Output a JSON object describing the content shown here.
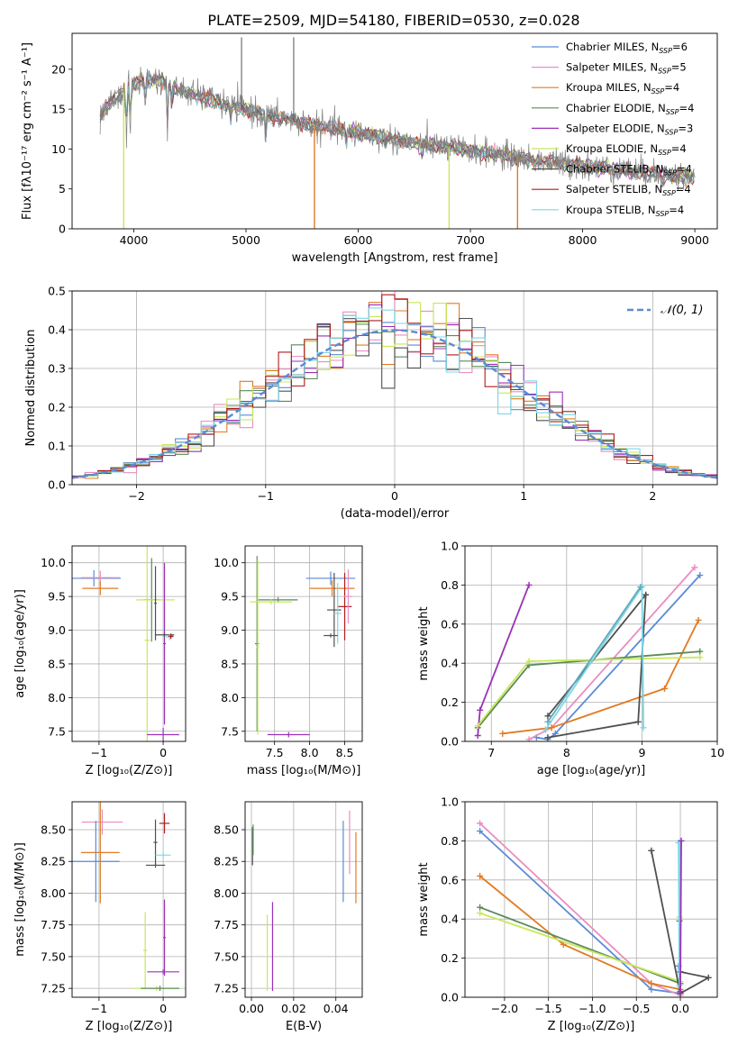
{
  "figure": {
    "title": "PLATE=2509, MJD=54180, FIBERID=0530, z=0.028"
  },
  "model_colors": [
    "#4c72b0",
    "#dd8452",
    "#55a868",
    "#c44e52",
    "#8172b3",
    "#937860",
    "#da8bc3",
    "#8c8c8c",
    "#ccb974",
    "#64b5cd"
  ],
  "chart_data": [
    {
      "id": "spectrum",
      "type": "line",
      "xlabel": "wavelength [Angstrom, rest frame]",
      "ylabel": "Flux [fλ10⁻¹⁷ erg cm⁻² s⁻¹ A⁻¹]",
      "xlim": [
        3450,
        9200
      ],
      "ylim": [
        0,
        24.5
      ],
      "xticks": [
        4000,
        5000,
        6000,
        7000,
        8000,
        9000
      ],
      "yticks": [
        0,
        5,
        10,
        15,
        20
      ],
      "legend": {
        "position": "right",
        "entries": [
          {
            "label": "Chabrier MILES, N",
            "sub": "SSP",
            "suffix": "=6",
            "color": "#5b8bd6"
          },
          {
            "label": "Salpeter MILES, N",
            "sub": "SSP",
            "suffix": "=5",
            "color": "#e98ec0"
          },
          {
            "label": "Kroupa MILES, N",
            "sub": "SSP",
            "suffix": "=4",
            "color": "#e07b22"
          },
          {
            "label": "Chabrier ELODIE, N",
            "sub": "SSP",
            "suffix": "=4",
            "color": "#5a8a5a"
          },
          {
            "label": "Salpeter ELODIE, N",
            "sub": "SSP",
            "suffix": "=3",
            "color": "#9b30b8"
          },
          {
            "label": "Kroupa ELODIE, N",
            "sub": "SSP",
            "suffix": "=4",
            "color": "#c8e85a"
          },
          {
            "label": "Chabrier STELIB, N",
            "sub": "SSP",
            "suffix": "=4",
            "color": "#505050"
          },
          {
            "label": "Salpeter STELIB, N",
            "sub": "SSP",
            "suffix": "=4",
            "color": "#b01c1c"
          },
          {
            "label": "Kroupa STELIB, N",
            "sub": "SSP",
            "suffix": "=4",
            "color": "#7ad8e6"
          }
        ]
      },
      "data_color": "#7f7f7f",
      "continuum": {
        "x": [
          3700,
          3800,
          3950,
          4100,
          4250,
          4400,
          4600,
          4800,
          5000,
          5200,
          5400,
          5600,
          5800,
          6000,
          6200,
          6400,
          6600,
          6800,
          7000,
          7200,
          7400,
          7600,
          7800,
          8000,
          8200,
          8400,
          8600,
          8800,
          9000
        ],
        "y": [
          14.0,
          16.0,
          17.5,
          19.0,
          18.5,
          17.5,
          16.5,
          15.7,
          15.0,
          14.2,
          13.6,
          13.0,
          12.5,
          12.0,
          11.5,
          11.0,
          10.6,
          10.2,
          9.8,
          9.4,
          9.0,
          8.5,
          8.2,
          7.9,
          7.6,
          7.3,
          7.0,
          6.7,
          6.4
        ]
      },
      "absorption_lines": [
        {
          "x": 3934,
          "depth": 6
        },
        {
          "x": 3969,
          "depth": 5
        },
        {
          "x": 4102,
          "depth": 4
        },
        {
          "x": 4300,
          "depth": 5
        },
        {
          "x": 4340,
          "depth": 3
        },
        {
          "x": 4861,
          "depth": 2
        },
        {
          "x": 5175,
          "depth": 3
        },
        {
          "x": 5893,
          "depth": 2
        },
        {
          "x": 6563,
          "depth": 1.5
        }
      ],
      "model_dropouts": [
        {
          "x": 3910,
          "color": "#c8e85a"
        },
        {
          "x": 5610,
          "color": "#e07b22"
        },
        {
          "x": 6810,
          "color": "#c8e85a"
        },
        {
          "x": 7420,
          "color": "#e07b22"
        }
      ],
      "data_spikes": [
        {
          "x": 4960,
          "y": 24.0
        },
        {
          "x": 5425,
          "y": 24.0
        }
      ]
    },
    {
      "id": "residual_histogram",
      "type": "bar",
      "xlabel": "(data-model)/error",
      "ylabel": "Normed distribution",
      "xlim": [
        -2.5,
        2.5
      ],
      "ylim": [
        0,
        0.5
      ],
      "xticks": [
        -2,
        -1,
        0,
        1,
        2
      ],
      "yticks": [
        0.0,
        0.1,
        0.2,
        0.3,
        0.4,
        0.5
      ],
      "bin_width": 0.1,
      "reference_curve": {
        "label": "𝒩(0, 1)",
        "color": "#5b8bd6",
        "style": "dashed"
      },
      "legend": {
        "position": "top-right"
      }
    },
    {
      "id": "age_vs_Z",
      "type": "scatter",
      "xlabel": "Z [log₁₀(Z/Z⊙)]",
      "ylabel": "age  [log₁₀(age/yr)]",
      "xlim": [
        -1.42,
        0.35
      ],
      "ylim": [
        7.35,
        10.25
      ],
      "xticks": [
        -1,
        0
      ],
      "yticks": [
        7.5,
        8.0,
        8.5,
        9.0,
        9.5,
        10.0
      ],
      "crosses": [
        {
          "x": -1.08,
          "xerr": 0.42,
          "y": 9.77,
          "yerr": 0.12,
          "color": "#5b8bd6"
        },
        {
          "x": -0.98,
          "xerr": 0.3,
          "y": 9.78,
          "yerr": 0.1,
          "color": "#e98ec0"
        },
        {
          "x": -0.98,
          "xerr": 0.28,
          "y": 9.62,
          "yerr": 0.1,
          "color": "#e07b22"
        },
        {
          "x": -0.18,
          "xerr": 0.12,
          "y": 9.45,
          "yerr": 0.62,
          "color": "#5a8a5a"
        },
        {
          "x": -0.25,
          "xerr": 0.04,
          "y": 8.85,
          "yerr": 1.5,
          "color": "#c8e85a"
        },
        {
          "x": -0.12,
          "xerr": 0.3,
          "y": 9.45,
          "yerr": 0.05,
          "color": "#c8e85a"
        },
        {
          "x": 0.0,
          "xerr": 0.25,
          "y": 7.45,
          "yerr": 0.1,
          "color": "#9b30b8"
        },
        {
          "x": 0.02,
          "xerr": 0.02,
          "y": 8.8,
          "yerr": 1.2,
          "color": "#9b30b8"
        },
        {
          "x": -0.12,
          "xerr": 0.02,
          "y": 9.4,
          "yerr": 0.55,
          "color": "#505050"
        },
        {
          "x": 0.02,
          "xerr": 0.15,
          "y": 8.93,
          "yerr": 0.03,
          "color": "#505050"
        },
        {
          "x": 0.1,
          "xerr": 0.06,
          "y": 8.9,
          "yerr": 0.05,
          "color": "#7ad8e6"
        },
        {
          "x": 0.12,
          "xerr": 0.04,
          "y": 8.91,
          "yerr": 0.04,
          "color": "#b01c1c"
        }
      ]
    },
    {
      "id": "age_vs_mass",
      "type": "scatter",
      "xlabel": "mass [log₁₀(M/M⊙)]",
      "ylabel": "",
      "xlim": [
        7.08,
        8.75
      ],
      "ylim": [
        7.35,
        10.25
      ],
      "xticks": [
        7.5,
        8.0,
        8.5
      ],
      "yticks": [
        7.5,
        8.0,
        8.5,
        9.0,
        9.5,
        10.0
      ],
      "crosses": [
        {
          "x": 7.25,
          "xerr": 0.03,
          "y": 8.8,
          "yerr": 1.3,
          "color": "#5a8a5a"
        },
        {
          "x": 7.26,
          "xerr": 0.02,
          "y": 8.75,
          "yerr": 1.3,
          "color": "#c8e85a"
        },
        {
          "x": 7.55,
          "xerr": 0.28,
          "y": 9.45,
          "yerr": 0.04,
          "color": "#5a8a5a"
        },
        {
          "x": 7.45,
          "xerr": 0.3,
          "y": 9.42,
          "yerr": 0.04,
          "color": "#c8e85a"
        },
        {
          "x": 7.7,
          "xerr": 0.3,
          "y": 7.45,
          "yerr": 0.04,
          "color": "#9b30b8"
        },
        {
          "x": 8.3,
          "xerr": 0.35,
          "y": 9.77,
          "yerr": 0.1,
          "color": "#5b8bd6"
        },
        {
          "x": 8.32,
          "xerr": 0.32,
          "y": 9.62,
          "yerr": 0.12,
          "color": "#e07b22"
        },
        {
          "x": 8.35,
          "xerr": 0.1,
          "y": 9.3,
          "yerr": 0.55,
          "color": "#505050"
        },
        {
          "x": 8.5,
          "xerr": 0.1,
          "y": 9.35,
          "yerr": 0.5,
          "color": "#b01c1c"
        },
        {
          "x": 8.55,
          "xerr": 0.06,
          "y": 9.5,
          "yerr": 0.4,
          "color": "#e98ec0"
        },
        {
          "x": 8.4,
          "xerr": 0.05,
          "y": 9.25,
          "yerr": 0.45,
          "color": "#7ad8e6"
        },
        {
          "x": 8.3,
          "xerr": 0.1,
          "y": 8.92,
          "yerr": 0.03,
          "color": "#505050"
        }
      ]
    },
    {
      "id": "weight_vs_age",
      "type": "line",
      "xlabel": "age  [log₁₀(age/yr)]",
      "ylabel": "mass weight",
      "xlim": [
        6.65,
        10.0
      ],
      "ylim": [
        0,
        1.0
      ],
      "xticks": [
        7,
        8,
        9,
        10
      ],
      "yticks": [
        0.0,
        0.2,
        0.4,
        0.6,
        0.8,
        1.0
      ],
      "series": [
        {
          "color": "#5b8bd6",
          "x": [
            7.6,
            7.75,
            7.85,
            9.77
          ],
          "y": [
            0.02,
            0.01,
            0.04,
            0.85
          ]
        },
        {
          "color": "#e98ec0",
          "x": [
            7.5,
            7.8,
            9.7
          ],
          "y": [
            0.01,
            0.07,
            0.89
          ]
        },
        {
          "color": "#e07b22",
          "x": [
            7.15,
            7.8,
            9.3,
            9.75
          ],
          "y": [
            0.04,
            0.07,
            0.27,
            0.62
          ]
        },
        {
          "color": "#5a8a5a",
          "x": [
            6.82,
            7.5,
            9.77
          ],
          "y": [
            0.07,
            0.39,
            0.46
          ]
        },
        {
          "color": "#9b30b8",
          "x": [
            6.82,
            6.85,
            7.5
          ],
          "y": [
            0.03,
            0.16,
            0.8
          ]
        },
        {
          "color": "#c8e85a",
          "x": [
            6.82,
            7.5,
            9.77
          ],
          "y": [
            0.08,
            0.41,
            0.43
          ]
        },
        {
          "color": "#505050",
          "x": [
            7.75,
            8.95,
            9.05,
            7.75
          ],
          "y": [
            0.02,
            0.1,
            0.75,
            0.13
          ]
        },
        {
          "color": "#7ad8e6",
          "x": [
            7.72,
            9.0,
            9.02
          ],
          "y": [
            0.06,
            0.79,
            0.07
          ]
        },
        {
          "color": "#64a8b8",
          "x": [
            7.75,
            8.98
          ],
          "y": [
            0.1,
            0.79
          ]
        }
      ]
    },
    {
      "id": "mass_vs_Z",
      "type": "scatter",
      "xlabel": "Z [log₁₀(Z/Z⊙)]",
      "ylabel": "mass [log₁₀(M/M⊙)]",
      "xlim": [
        -1.42,
        0.35
      ],
      "ylim": [
        7.18,
        8.72
      ],
      "xticks": [
        -1,
        0
      ],
      "yticks": [
        7.25,
        7.5,
        7.75,
        8.0,
        8.25,
        8.5
      ],
      "crosses": [
        {
          "x": -0.95,
          "xerr": 0.32,
          "y": 8.56,
          "yerr": 0.1,
          "color": "#e98ec0"
        },
        {
          "x": -0.98,
          "xerr": 0.3,
          "y": 8.32,
          "yerr": 0.4,
          "color": "#e07b22"
        },
        {
          "x": -1.05,
          "xerr": 0.37,
          "y": 8.25,
          "yerr": 0.32,
          "color": "#5b8bd6"
        },
        {
          "x": -0.28,
          "xerr": 0.03,
          "y": 7.55,
          "yerr": 0.3,
          "color": "#c8e85a"
        },
        {
          "x": -0.1,
          "xerr": 0.35,
          "y": 7.25,
          "yerr": 0.02,
          "color": "#c8e85a"
        },
        {
          "x": -0.05,
          "xerr": 0.3,
          "y": 7.25,
          "yerr": 0.02,
          "color": "#5a8a5a"
        },
        {
          "x": 0.0,
          "xerr": 0.25,
          "y": 7.38,
          "yerr": 0.02,
          "color": "#9b30b8"
        },
        {
          "x": 0.02,
          "xerr": 0.02,
          "y": 7.65,
          "yerr": 0.3,
          "color": "#9b30b8"
        },
        {
          "x": -0.12,
          "xerr": 0.03,
          "y": 8.4,
          "yerr": 0.18,
          "color": "#505050"
        },
        {
          "x": -0.12,
          "xerr": 0.15,
          "y": 8.22,
          "yerr": 0.02,
          "color": "#505050"
        },
        {
          "x": 0.02,
          "xerr": 0.08,
          "y": 8.55,
          "yerr": 0.08,
          "color": "#b01c1c"
        },
        {
          "x": 0.0,
          "xerr": 0.12,
          "y": 8.3,
          "yerr": 0.02,
          "color": "#7ad8e6"
        }
      ]
    },
    {
      "id": "mass_vs_ebv",
      "type": "scatter",
      "xlabel": "E(B-V)",
      "ylabel": "",
      "xlim": [
        -0.003,
        0.0525
      ],
      "ylim": [
        7.18,
        8.72
      ],
      "xticks": [
        0.0,
        0.02,
        0.04
      ],
      "yticks": [
        7.25,
        7.5,
        7.75,
        8.0,
        8.25,
        8.5
      ],
      "crosses": [
        {
          "x": 0.0005,
          "xerr": 0,
          "y": 8.37,
          "yerr": 0.15,
          "color": "#505050"
        },
        {
          "x": 0.0008,
          "xerr": 0,
          "y": 8.42,
          "yerr": 0.12,
          "color": "#5a8a5a"
        },
        {
          "x": 0.0075,
          "xerr": 0,
          "y": 7.53,
          "yerr": 0.3,
          "color": "#c8e85a"
        },
        {
          "x": 0.01,
          "xerr": 0,
          "y": 7.58,
          "yerr": 0.35,
          "color": "#9b30b8"
        },
        {
          "x": 0.0435,
          "xerr": 0,
          "y": 8.25,
          "yerr": 0.32,
          "color": "#5b8bd6"
        },
        {
          "x": 0.0465,
          "xerr": 0,
          "y": 8.4,
          "yerr": 0.25,
          "color": "#e98ec0"
        },
        {
          "x": 0.0495,
          "xerr": 0,
          "y": 8.2,
          "yerr": 0.28,
          "color": "#e07b22"
        }
      ]
    },
    {
      "id": "weight_vs_Z",
      "type": "line",
      "xlabel": "Z [log₁₀(Z/Z⊙)]",
      "ylabel": "mass weight",
      "xlim": [
        -2.45,
        0.42
      ],
      "ylim": [
        0,
        1.0
      ],
      "xticks": [
        -2.0,
        -1.5,
        -1.0,
        -0.5,
        0.0
      ],
      "tick_labels": [
        "−2.0",
        "−1.5",
        "−1.0",
        "−0.5",
        "0.0"
      ],
      "yticks": [
        0.0,
        0.2,
        0.4,
        0.6,
        0.8,
        1.0
      ],
      "series": [
        {
          "color": "#5b8bd6",
          "x": [
            -2.28,
            -0.33,
            0.0,
            -0.02
          ],
          "y": [
            0.85,
            0.04,
            0.02,
            0.16
          ]
        },
        {
          "color": "#e98ec0",
          "x": [
            -2.28,
            -0.33,
            0.0
          ],
          "y": [
            0.89,
            0.07,
            0.01
          ]
        },
        {
          "color": "#e07b22",
          "x": [
            -2.28,
            -1.33,
            -0.33,
            0.0
          ],
          "y": [
            0.62,
            0.27,
            0.07,
            0.04
          ]
        },
        {
          "color": "#5a8a5a",
          "x": [
            -2.28,
            0.0,
            -0.01
          ],
          "y": [
            0.46,
            0.07,
            0.39
          ]
        },
        {
          "color": "#c8e85a",
          "x": [
            -2.28,
            0.0,
            -0.01
          ],
          "y": [
            0.43,
            0.08,
            0.41
          ]
        },
        {
          "color": "#505050",
          "x": [
            -0.33,
            0.0,
            0.32,
            0.0
          ],
          "y": [
            0.75,
            0.02,
            0.1,
            0.13
          ]
        },
        {
          "color": "#7ad8e6",
          "x": [
            -0.02,
            -0.01,
            0.0
          ],
          "y": [
            0.79,
            0.06,
            0.8
          ]
        },
        {
          "color": "#9b30b8",
          "x": [
            0.0,
            0.01
          ],
          "y": [
            0.03,
            0.8
          ]
        }
      ]
    }
  ]
}
